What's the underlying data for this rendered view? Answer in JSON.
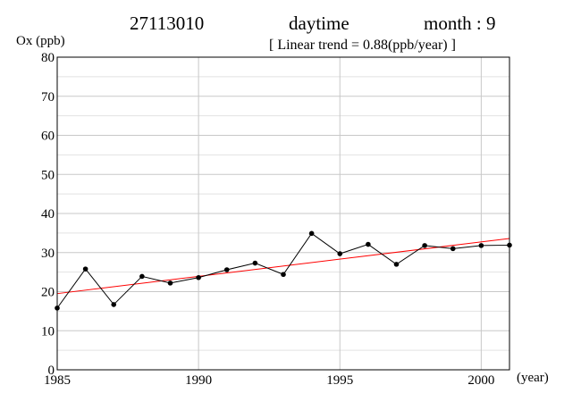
{
  "header": {
    "station": "27113010",
    "period": "daytime",
    "month": "month : 9",
    "trend": "[ Linear trend = 0.88(ppb/year) ]"
  },
  "chart_data": {
    "type": "line",
    "ylabel": "Ox (ppb)",
    "xlabel": "(year)",
    "xlim": [
      1985,
      2001
    ],
    "ylim": [
      0,
      80
    ],
    "x_ticks": [
      1985,
      1990,
      1995,
      2000
    ],
    "y_ticks": [
      0,
      10,
      20,
      30,
      40,
      50,
      60,
      70,
      80
    ],
    "grid": true,
    "series": [
      {
        "color": "#000000",
        "x": [
          1985,
          1986,
          1987,
          1988,
          1989,
          1990,
          1991,
          1992,
          1993,
          1994,
          1995,
          1996,
          1997,
          1998,
          1999,
          2000,
          2001
        ],
        "values": [
          15.8,
          25.8,
          16.7,
          23.9,
          22.2,
          23.6,
          25.6,
          27.3,
          24.4,
          34.9,
          29.7,
          32.1,
          27.0,
          31.8,
          31.0,
          31.8,
          31.9
        ]
      }
    ],
    "trend_line": {
      "color": "#ff0000",
      "slope": 0.88,
      "x": [
        1985,
        2001
      ],
      "values": [
        19.5,
        33.6
      ]
    }
  }
}
